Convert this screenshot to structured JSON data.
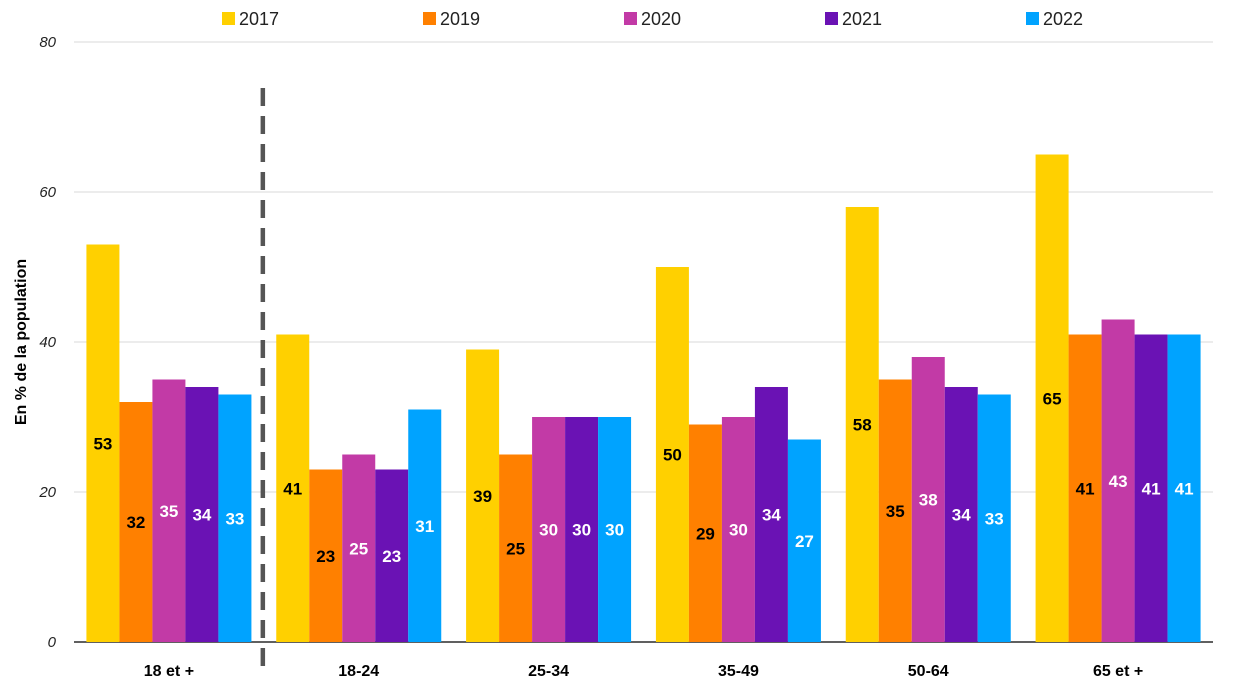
{
  "chart_data": {
    "type": "bar",
    "ylabel": "En % de la population",
    "xlabel": "",
    "ylim": [
      0,
      80
    ],
    "yticks": [
      0,
      20,
      40,
      60,
      80
    ],
    "grid": true,
    "legend_position": "top",
    "categories": [
      "18 et +",
      "18-24",
      "25-34",
      "35-49",
      "50-64",
      "65 et +"
    ],
    "series": [
      {
        "name": "2017",
        "color": "#FFD000",
        "label_color": "#000000",
        "values": [
          53,
          41,
          39,
          50,
          58,
          65
        ]
      },
      {
        "name": "2019",
        "color": "#FF8000",
        "label_color": "#000000",
        "values": [
          32,
          23,
          25,
          29,
          35,
          41
        ]
      },
      {
        "name": "2020",
        "color": "#C23AA6",
        "label_color": "#FFFFFF",
        "values": [
          35,
          25,
          30,
          30,
          38,
          43
        ]
      },
      {
        "name": "2021",
        "color": "#6A12B4",
        "label_color": "#FFFFFF",
        "values": [
          34,
          23,
          30,
          34,
          34,
          41
        ]
      },
      {
        "name": "2022",
        "color": "#00A3FF",
        "label_color": "#FFFFFF",
        "values": [
          33,
          31,
          30,
          27,
          33,
          41
        ]
      }
    ],
    "separator_after_category": "18 et +"
  }
}
